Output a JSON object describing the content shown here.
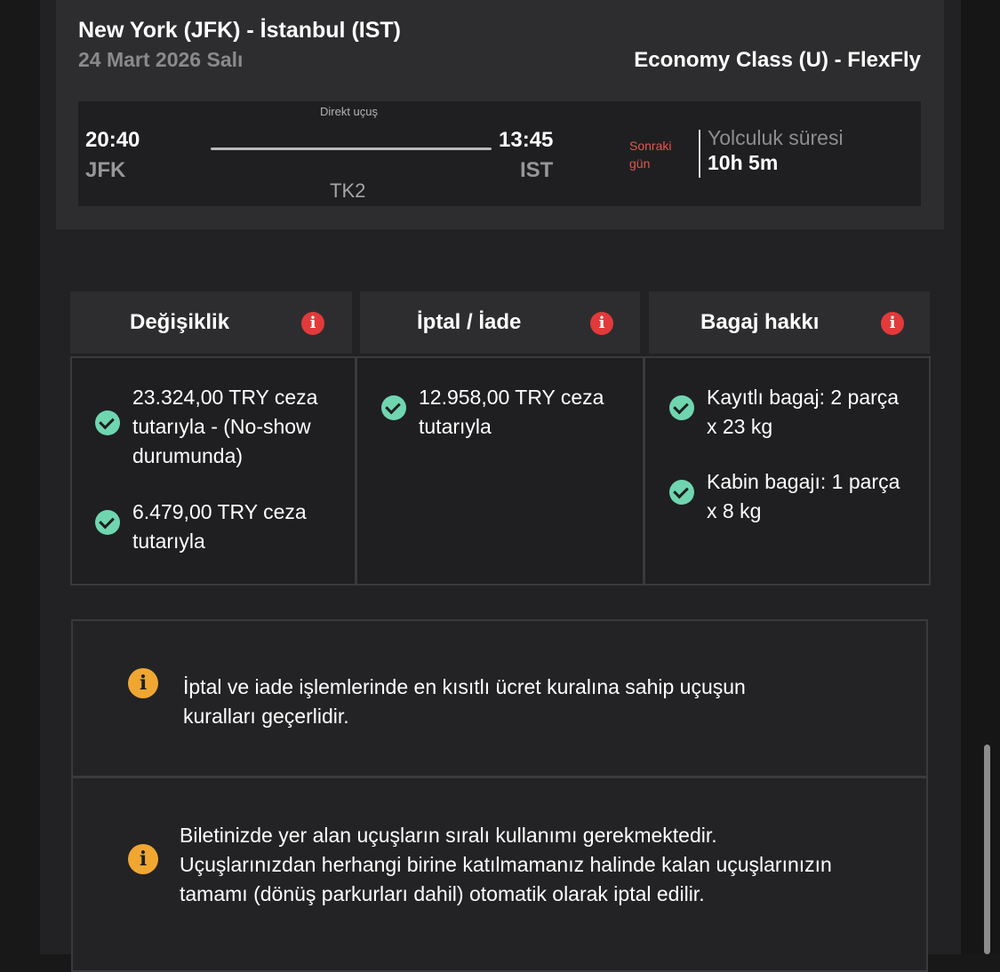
{
  "flight": {
    "route": "New York (JFK) - İstanbul (IST)",
    "date": "24 Mart 2026 Salı",
    "cabin_class": "Economy Class (U) - FlexFly",
    "departure_time": "20:40",
    "departure_code": "JFK",
    "arrival_time": "13:45",
    "arrival_code": "IST",
    "direct_label": "Direkt uçuş",
    "flight_number": "TK2",
    "next_day_label": "Sonraki gün",
    "duration_label": "Yolculuk süresi",
    "duration_value": "10h 5m"
  },
  "rules": [
    {
      "title": "Değişiklik",
      "icon": "info-icon",
      "items": [
        "23.324,00 TRY ceza tutarıyla - (No-show durumunda)",
        "6.479,00 TRY ceza tutarıyla"
      ]
    },
    {
      "title": "İptal / İade",
      "icon": "info-icon",
      "items": [
        "12.958,00 TRY ceza tutarıyla"
      ]
    },
    {
      "title": "Bagaj hakkı",
      "icon": "info-icon",
      "items": [
        "Kayıtlı bagaj: 2 parça x 23 kg",
        "Kabin bagajı: 1 parça x 8 kg"
      ]
    }
  ],
  "notices": [
    "İptal ve iade işlemlerinde en kısıtlı ücret kuralına sahip uçuşun kuralları geçerlidir.",
    "Biletinizde yer alan uçuşların sıralı kullanımı gerekmektedir. Uçuşlarınızdan herhangi birine katılmamanız halinde kalan uçuşlarınızın tamamı (dönüş parkurları dahil) otomatik olarak iptal edilir."
  ],
  "colors": {
    "accent_red": "#e23a3a",
    "check_green": "#6fd6b0",
    "warning_yellow": "#f0a732",
    "next_day_red": "#e0584c"
  }
}
